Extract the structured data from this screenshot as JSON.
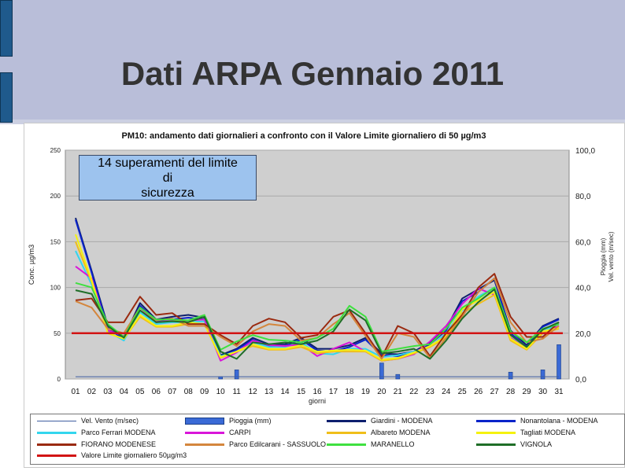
{
  "slide": {
    "title": "Dati ARPA Gennaio 2011"
  },
  "callout": {
    "lines": [
      "14 superamenti del limite",
      "di",
      "sicurezza"
    ]
  },
  "chart_data": {
    "type": "line",
    "title": "PM10: andamento  dati giornalieri a confronto con il Valore Limite giornaliero di 50 µg/m3",
    "xlabel": "giorni",
    "ylabel": "Conc. µg/m3",
    "y2label": [
      "Pioggia (mm)",
      "Vel. vento (m/sec)"
    ],
    "ylim": [
      0,
      250
    ],
    "y2lim": [
      0,
      100
    ],
    "yticks": [
      "0",
      "50",
      "100",
      "150",
      "200",
      "250"
    ],
    "y2ticks": [
      "0,0",
      "20,0",
      "40,0",
      "60,0",
      "80,0",
      "100,0"
    ],
    "categories": [
      "01",
      "02",
      "03",
      "04",
      "05",
      "06",
      "07",
      "08",
      "09",
      "10",
      "11",
      "12",
      "13",
      "14",
      "15",
      "16",
      "17",
      "18",
      "19",
      "20",
      "21",
      "22",
      "23",
      "24",
      "25",
      "26",
      "27",
      "28",
      "29",
      "30",
      "31"
    ],
    "limit": 50,
    "rain": [
      0,
      0,
      0,
      0,
      0,
      0,
      0,
      0,
      0,
      1,
      4,
      0,
      0,
      0,
      0,
      0,
      0,
      0,
      0,
      7,
      2,
      0,
      0,
      0,
      0,
      0,
      0,
      3,
      0,
      4,
      15
    ],
    "wind": [
      1,
      1,
      1,
      1,
      1,
      1,
      1,
      1,
      1,
      1,
      1,
      1,
      1,
      1,
      1,
      1,
      1,
      1,
      1,
      1,
      1,
      1,
      1,
      1,
      1,
      1,
      1,
      1,
      1,
      1,
      1
    ],
    "series": [
      {
        "name": "Giardini - MODENA",
        "color": "#0d1f6e",
        "values": [
          176,
          118,
          58,
          45,
          83,
          65,
          68,
          70,
          67,
          26,
          33,
          45,
          38,
          38,
          45,
          33,
          33,
          37,
          45,
          28,
          27,
          30,
          40,
          55,
          88,
          98,
          108,
          53,
          37,
          58,
          66
        ]
      },
      {
        "name": "Nonantolana - MODENA",
        "color": "#0a23c9",
        "values": [
          174,
          116,
          56,
          43,
          80,
          63,
          65,
          67,
          65,
          24,
          32,
          43,
          36,
          36,
          43,
          31,
          30,
          35,
          43,
          26,
          25,
          28,
          38,
          53,
          85,
          95,
          110,
          50,
          35,
          57,
          65
        ]
      },
      {
        "name": "Parco Ferrari - MODENA",
        "color": "#33d6ee",
        "values": [
          140,
          103,
          52,
          42,
          73,
          60,
          62,
          62,
          63,
          25,
          30,
          40,
          35,
          35,
          40,
          28,
          27,
          33,
          33,
          24,
          26,
          30,
          35,
          50,
          75,
          90,
          100,
          45,
          35,
          52,
          60
        ]
      },
      {
        "name": "CARPI",
        "color": "#d916d9",
        "values": [
          123,
          110,
          53,
          47,
          78,
          62,
          64,
          64,
          65,
          20,
          29,
          42,
          37,
          36,
          38,
          25,
          33,
          40,
          30,
          20,
          22,
          27,
          41,
          58,
          82,
          99,
          92,
          45,
          33,
          50,
          58
        ]
      },
      {
        "name": "Albareto MODENA",
        "color": "#f0be1a",
        "values": [
          150,
          106,
          50,
          44,
          68,
          57,
          57,
          60,
          60,
          23,
          30,
          36,
          32,
          32,
          35,
          28,
          30,
          30,
          30,
          20,
          22,
          28,
          35,
          45,
          72,
          82,
          92,
          42,
          32,
          50,
          55
        ]
      },
      {
        "name": "Tagliati - MODENA",
        "color": "#f5f20f",
        "values": [
          158,
          108,
          50,
          44,
          70,
          58,
          58,
          62,
          60,
          24,
          30,
          38,
          33,
          33,
          37,
          30,
          31,
          32,
          31,
          21,
          23,
          29,
          36,
          47,
          76,
          86,
          95,
          44,
          33,
          52,
          56
        ]
      },
      {
        "name": "FIORANO MODENESE",
        "color": "#9a2a10",
        "values": [
          86,
          88,
          62,
          62,
          90,
          70,
          72,
          60,
          60,
          48,
          38,
          58,
          66,
          62,
          45,
          48,
          68,
          75,
          50,
          24,
          58,
          50,
          25,
          50,
          70,
          100,
          115,
          68,
          46,
          46,
          62
        ]
      },
      {
        "name": "Parco Edilcarani - SASSUOLO",
        "color": "#d4863d",
        "values": [
          85,
          78,
          55,
          50,
          78,
          64,
          66,
          58,
          58,
          46,
          36,
          52,
          60,
          58,
          42,
          45,
          60,
          72,
          47,
          22,
          50,
          46,
          23,
          45,
          68,
          95,
          110,
          62,
          40,
          44,
          58
        ]
      },
      {
        "name": "MARANELLO",
        "color": "#3fe040",
        "values": [
          105,
          100,
          60,
          46,
          78,
          65,
          65,
          64,
          70,
          32,
          41,
          48,
          43,
          42,
          40,
          45,
          55,
          80,
          68,
          30,
          33,
          36,
          38,
          55,
          78,
          88,
          100,
          52,
          40,
          55,
          60
        ]
      },
      {
        "name": "VIGNOLA",
        "color": "#1f6e28",
        "values": [
          97,
          93,
          58,
          45,
          75,
          62,
          63,
          62,
          68,
          30,
          22,
          40,
          38,
          40,
          38,
          42,
          52,
          76,
          64,
          28,
          30,
          33,
          22,
          42,
          66,
          84,
          98,
          48,
          35,
          54,
          62
        ]
      }
    ],
    "legend": [
      {
        "label": "Vel. Vento (m/sec)",
        "color": "#3f5ea0",
        "kind": "line-thin"
      },
      {
        "label": "Pioggia (mm)",
        "color": "#3a6ad6",
        "kind": "box"
      },
      {
        "label": "Giardini - MODENA",
        "color": "#0d1f6e",
        "kind": "line"
      },
      {
        "label": "Nonantolana - MODENA",
        "color": "#0a23c9",
        "kind": "line"
      },
      {
        "label": "Parco Ferrari MODENA",
        "color": "#33d6ee",
        "kind": "line"
      },
      {
        "label": "CARPI",
        "color": "#d916d9",
        "kind": "line"
      },
      {
        "label": "Albareto MODENA",
        "color": "#f0be1a",
        "kind": "line"
      },
      {
        "label": "Tagliati MODENA",
        "color": "#f5f20f",
        "kind": "line"
      },
      {
        "label": "FIORANO MODENESE",
        "color": "#9a2a10",
        "kind": "line"
      },
      {
        "label": "Parco Edilcarani - SASSUOLO",
        "color": "#d4863d",
        "kind": "line"
      },
      {
        "label": "MARANELLO",
        "color": "#3fe040",
        "kind": "line"
      },
      {
        "label": "VIGNOLA",
        "color": "#1f6e28",
        "kind": "line"
      },
      {
        "label": "Valore Limite giornaliero 50µg/m3",
        "color": "#d21414",
        "kind": "line"
      }
    ],
    "colors": {
      "limit": "#d21414",
      "rain": "#3a6ad6",
      "plot_bg": "#cfcfcf"
    },
    "grid": true,
    "legend_position": "bottom"
  }
}
